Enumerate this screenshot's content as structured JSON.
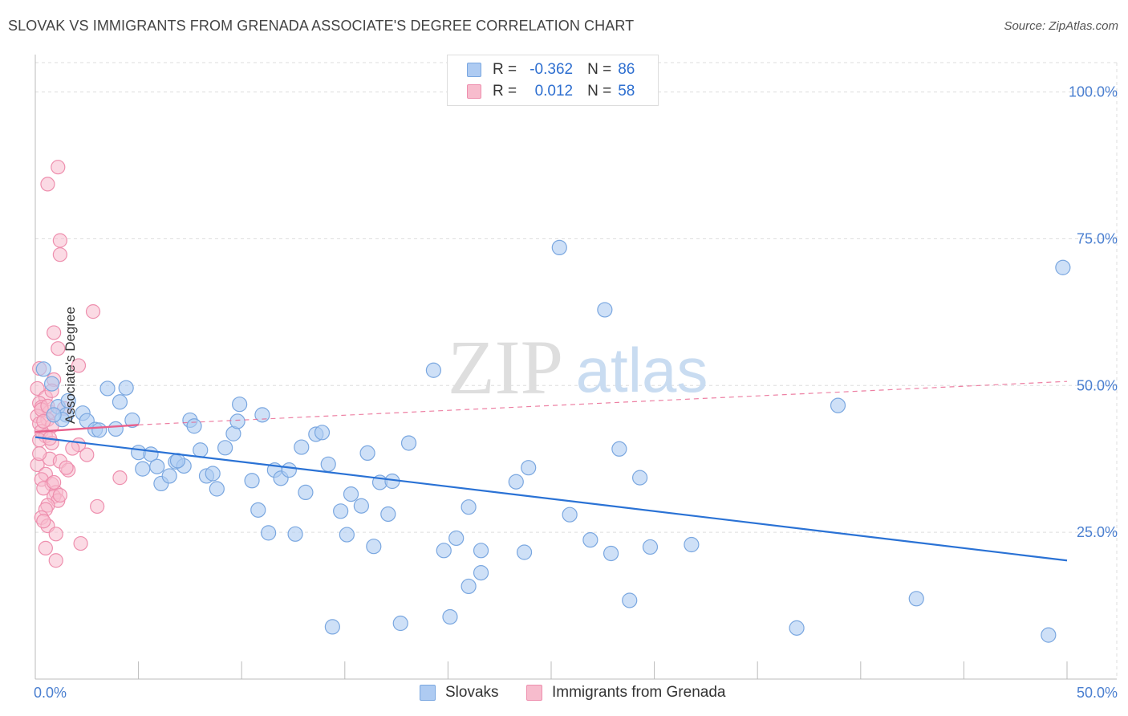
{
  "title": "SLOVAK VS IMMIGRANTS FROM GRENADA ASSOCIATE'S DEGREE CORRELATION CHART",
  "source": "Source: ZipAtlas.com",
  "watermark": {
    "zip": "ZIP",
    "atlas": "atlas"
  },
  "colors": {
    "blue_fill": "#aecbf2",
    "blue_stroke": "#7aa7e0",
    "blue_line": "#2a72d5",
    "pink_fill": "#f7bccd",
    "pink_stroke": "#ee8fae",
    "pink_line": "#e8608c",
    "tick_text": "#4a7fd0",
    "grid": "#dddddd"
  },
  "legend": {
    "rows": [
      {
        "r_label": "R =",
        "r_value": "-0.362",
        "n_label": "N =",
        "n_value": "86"
      },
      {
        "r_label": "R =",
        "r_value": "0.012",
        "n_label": "N =",
        "n_value": "58"
      }
    ]
  },
  "bottom_legend": {
    "series1": "Slovaks",
    "series2": "Immigrants from Grenada"
  },
  "chart_data": {
    "type": "scatter",
    "title": "SLOVAK VS IMMIGRANTS FROM GRENADA ASSOCIATE'S DEGREE CORRELATION CHART",
    "xlabel": "",
    "ylabel": "Associate's Degree",
    "xlim": [
      0,
      50
    ],
    "ylim": [
      0,
      105
    ],
    "x_tick_labels": [
      "0.0%",
      "50.0%"
    ],
    "y_ticks": [
      25,
      50,
      75,
      100
    ],
    "y_tick_labels": [
      "25.0%",
      "50.0%",
      "75.0%",
      "100.0%"
    ],
    "grid": true,
    "series": [
      {
        "name": "Slovaks",
        "R": -0.362,
        "N": 86,
        "trend": {
          "x": [
            0,
            50
          ],
          "y": [
            41.2,
            20.2
          ],
          "style": "solid"
        },
        "points": [
          [
            0.4,
            52.8
          ],
          [
            0.8,
            50.3
          ],
          [
            1.1,
            46.4
          ],
          [
            1.5,
            45
          ],
          [
            1.6,
            47.4
          ],
          [
            1.3,
            44.2
          ],
          [
            2.3,
            45.3
          ],
          [
            2.5,
            44
          ],
          [
            2.9,
            42.5
          ],
          [
            3.1,
            42.4
          ],
          [
            3.5,
            49.5
          ],
          [
            3.9,
            42.6
          ],
          [
            4.1,
            47.2
          ],
          [
            4.4,
            49.6
          ],
          [
            4.7,
            44.1
          ],
          [
            5,
            38.6
          ],
          [
            5.2,
            35.8
          ],
          [
            5.6,
            38.3
          ],
          [
            5.9,
            36.2
          ],
          [
            6.1,
            33.3
          ],
          [
            6.5,
            34.6
          ],
          [
            6.8,
            37
          ],
          [
            7.2,
            36.3
          ],
          [
            7.5,
            44.1
          ],
          [
            7.7,
            43.1
          ],
          [
            8,
            39
          ],
          [
            8.3,
            34.6
          ],
          [
            8.6,
            35
          ],
          [
            8.8,
            32.4
          ],
          [
            9.2,
            39.4
          ],
          [
            9.6,
            41.8
          ],
          [
            9.8,
            43.9
          ],
          [
            9.9,
            46.8
          ],
          [
            10.5,
            33.8
          ],
          [
            10.8,
            28.8
          ],
          [
            11,
            45
          ],
          [
            11.3,
            24.9
          ],
          [
            11.6,
            35.6
          ],
          [
            11.9,
            34.2
          ],
          [
            12.3,
            35.6
          ],
          [
            12.6,
            24.7
          ],
          [
            12.9,
            39.5
          ],
          [
            13.1,
            31.8
          ],
          [
            13.6,
            41.7
          ],
          [
            13.9,
            42
          ],
          [
            14.2,
            36.6
          ],
          [
            14.4,
            8.9
          ],
          [
            14.8,
            28.6
          ],
          [
            15.1,
            24.6
          ],
          [
            15.3,
            31.5
          ],
          [
            15.8,
            29.5
          ],
          [
            16.1,
            38.5
          ],
          [
            16.4,
            22.6
          ],
          [
            16.7,
            33.5
          ],
          [
            17.1,
            28.1
          ],
          [
            17.3,
            33.7
          ],
          [
            17.7,
            9.5
          ],
          [
            18.1,
            40.2
          ],
          [
            19.3,
            52.6
          ],
          [
            19.8,
            21.9
          ],
          [
            20.1,
            10.6
          ],
          [
            20.4,
            24
          ],
          [
            21,
            29.3
          ],
          [
            21.6,
            21.9
          ],
          [
            21.6,
            18.1
          ],
          [
            21,
            15.8
          ],
          [
            23.3,
            33.6
          ],
          [
            23.7,
            21.6
          ],
          [
            23.9,
            36
          ],
          [
            25.4,
            73.5
          ],
          [
            25.9,
            28
          ],
          [
            26.9,
            23.7
          ],
          [
            27.6,
            62.9
          ],
          [
            27.9,
            21.4
          ],
          [
            28.3,
            39.2
          ],
          [
            28.8,
            13.4
          ],
          [
            29.3,
            34.3
          ],
          [
            29.8,
            22.5
          ],
          [
            31.8,
            22.9
          ],
          [
            38.9,
            46.6
          ],
          [
            42.7,
            13.7
          ],
          [
            36.9,
            8.7
          ],
          [
            49.1,
            7.5
          ],
          [
            49.8,
            70.1
          ],
          [
            0.9,
            45
          ],
          [
            6.9,
            37.2
          ]
        ]
      },
      {
        "name": "Immigrants from Grenada",
        "R": 0.012,
        "N": 58,
        "trend_solid": {
          "x": [
            0,
            5
          ],
          "y": [
            42.1,
            43.3
          ]
        },
        "trend_dashed": {
          "x": [
            5,
            50
          ],
          "y": [
            43.3,
            50.7
          ]
        },
        "points": [
          [
            1.1,
            87.2
          ],
          [
            0.6,
            84.3
          ],
          [
            1.2,
            74.7
          ],
          [
            1.2,
            72.3
          ],
          [
            2.8,
            62.6
          ],
          [
            0.9,
            59
          ],
          [
            1.1,
            56.3
          ],
          [
            2.1,
            53.4
          ],
          [
            0.9,
            51
          ],
          [
            0.1,
            49.5
          ],
          [
            0.5,
            48
          ],
          [
            0.2,
            47
          ],
          [
            0.3,
            46.3
          ],
          [
            1.4,
            46.1
          ],
          [
            0.7,
            45.5
          ],
          [
            0.1,
            44.8
          ],
          [
            0.6,
            44.2
          ],
          [
            0.2,
            43.5
          ],
          [
            0.8,
            43.1
          ],
          [
            0.3,
            42.2
          ],
          [
            0.5,
            41.4
          ],
          [
            0.2,
            40.7
          ],
          [
            0.8,
            40.2
          ],
          [
            2.1,
            39.9
          ],
          [
            1.8,
            39.3
          ],
          [
            2.5,
            38.2
          ],
          [
            0.7,
            37.5
          ],
          [
            1.2,
            37.1
          ],
          [
            0.1,
            36.5
          ],
          [
            1.6,
            35.6
          ],
          [
            0.5,
            34.9
          ],
          [
            0.3,
            34
          ],
          [
            4.1,
            34.3
          ],
          [
            0.8,
            33.2
          ],
          [
            0.4,
            32.5
          ],
          [
            1.0,
            31.8
          ],
          [
            0.9,
            31.1
          ],
          [
            1.1,
            30.4
          ],
          [
            0.6,
            29.6
          ],
          [
            0.5,
            28.9
          ],
          [
            3,
            29.4
          ],
          [
            0.3,
            27.5
          ],
          [
            0.6,
            26.1
          ],
          [
            1,
            24.7
          ],
          [
            2.2,
            23.1
          ],
          [
            0.5,
            22.3
          ],
          [
            1,
            20.2
          ],
          [
            0.2,
            52.9
          ],
          [
            0.3,
            45.9
          ],
          [
            0.8,
            49.1
          ],
          [
            0.4,
            43.9
          ],
          [
            0.7,
            41
          ],
          [
            0.2,
            38.4
          ],
          [
            1.5,
            36
          ],
          [
            0.9,
            33.5
          ],
          [
            1.2,
            31.3
          ],
          [
            0.4,
            26.9
          ],
          [
            0.6,
            46.5
          ]
        ]
      }
    ]
  }
}
